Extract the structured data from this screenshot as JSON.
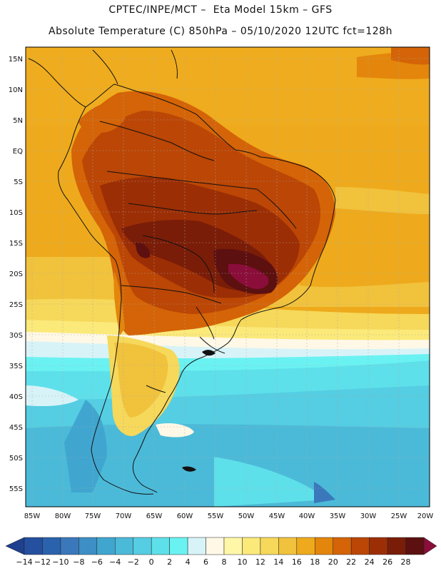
{
  "header": {
    "line1": "CPTEC/INPE/MCT –  Eta Model 15km – GFS",
    "line2": "Absolute Temperature (C) 850hPa – 05/10/2020 12UTC fct=128h"
  },
  "map": {
    "region": "South America",
    "lat_labels": [
      "15N",
      "10N",
      "5N",
      "EQ",
      "5S",
      "10S",
      "15S",
      "20S",
      "25S",
      "30S",
      "35S",
      "40S",
      "45S",
      "50S",
      "55S"
    ],
    "lat_values": [
      15,
      10,
      5,
      0,
      -5,
      -10,
      -15,
      -20,
      -25,
      -30,
      -35,
      -40,
      -45,
      -50,
      -55
    ],
    "lon_labels": [
      "85W",
      "80W",
      "75W",
      "70W",
      "65W",
      "60W",
      "55W",
      "50W",
      "45W",
      "40W",
      "35W",
      "30W",
      "25W",
      "20W"
    ],
    "lon_values": [
      -85,
      -80,
      -75,
      -70,
      -65,
      -60,
      -55,
      -50,
      -45,
      -40,
      -35,
      -30,
      -25,
      -20
    ],
    "lat_range": [
      -58.5,
      16.5
    ],
    "lon_range": [
      -86,
      -20.5
    ]
  },
  "colorbar": {
    "labels": [
      "-14",
      "-12",
      "-10",
      "-8",
      "-6",
      "-4",
      "-2",
      "0",
      "2",
      "4",
      "6",
      "8",
      "10",
      "12",
      "14",
      "16",
      "18",
      "20",
      "22",
      "24",
      "26",
      "28"
    ],
    "colors": [
      "#1f3f8f",
      "#24509f",
      "#2b62ad",
      "#3a78bb",
      "#3d8fc5",
      "#40a6cf",
      "#4bbad8",
      "#55cde2",
      "#5ee0ea",
      "#6af2f2",
      "#d7f3f8",
      "#fff8e6",
      "#fff6a8",
      "#fbe97a",
      "#f6d85a",
      "#f1c23c",
      "#eeaa1c",
      "#e3860b",
      "#d46407",
      "#bb4605",
      "#9c2e05",
      "#7a1d08",
      "#5c1010",
      "#8a0d3a"
    ]
  }
}
